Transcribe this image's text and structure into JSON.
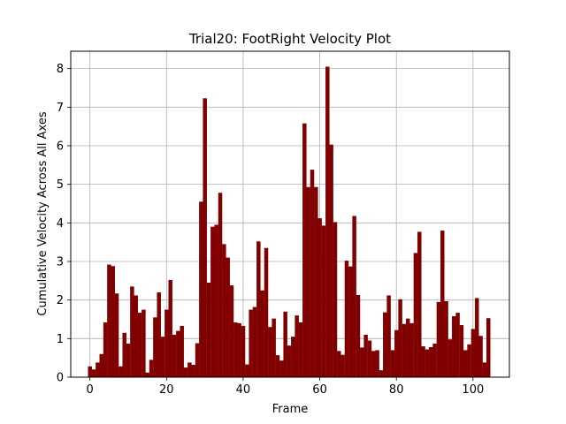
{
  "chart_data": {
    "type": "bar",
    "title": "Trial20: FootRight Velocity Plot",
    "xlabel": "Frame",
    "ylabel": "Cumulative Velocity Across All Axes",
    "xlim": [
      -5,
      109.5
    ],
    "ylim": [
      0,
      8.45
    ],
    "xticks": [
      0,
      20,
      40,
      60,
      80,
      100
    ],
    "yticks": [
      0,
      1,
      2,
      3,
      4,
      5,
      6,
      7,
      8
    ],
    "grid": true,
    "bar_color": "#800000",
    "x": [
      0,
      1,
      2,
      3,
      4,
      5,
      6,
      7,
      8,
      9,
      10,
      11,
      12,
      13,
      14,
      15,
      16,
      17,
      18,
      19,
      20,
      21,
      22,
      23,
      24,
      25,
      26,
      27,
      28,
      29,
      30,
      31,
      32,
      33,
      34,
      35,
      36,
      37,
      38,
      39,
      40,
      41,
      42,
      43,
      44,
      45,
      46,
      47,
      48,
      49,
      50,
      51,
      52,
      53,
      54,
      55,
      56,
      57,
      58,
      59,
      60,
      61,
      62,
      63,
      64,
      65,
      66,
      67,
      68,
      69,
      70,
      71,
      72,
      73,
      74,
      75,
      76,
      77,
      78,
      79,
      80,
      81,
      82,
      83,
      84,
      85,
      86,
      87,
      88,
      89,
      90,
      91,
      92,
      93,
      94,
      95,
      96,
      97,
      98,
      99,
      100,
      101,
      102,
      103,
      104
    ],
    "values": [
      0.28,
      0.2,
      0.38,
      0.6,
      1.42,
      2.92,
      2.88,
      2.17,
      0.28,
      1.15,
      0.87,
      2.35,
      2.12,
      1.67,
      1.75,
      0.12,
      0.45,
      1.55,
      2.2,
      1.05,
      1.75,
      2.52,
      1.1,
      1.2,
      1.33,
      0.25,
      0.38,
      0.32,
      0.88,
      4.55,
      7.23,
      2.45,
      3.9,
      3.95,
      4.78,
      3.45,
      3.1,
      2.38,
      1.42,
      1.4,
      1.33,
      0.33,
      1.75,
      1.82,
      3.52,
      2.25,
      3.35,
      1.3,
      1.52,
      0.57,
      0.43,
      1.7,
      0.82,
      1.05,
      1.6,
      1.42,
      6.58,
      4.93,
      5.38,
      4.93,
      4.12,
      3.93,
      8.05,
      6.03,
      4.02,
      0.68,
      0.58,
      3.02,
      2.87,
      4.18,
      2.13,
      0.77,
      1.1,
      0.95,
      0.68,
      0.7,
      0.18,
      1.68,
      2.12,
      0.7,
      1.22,
      2.02,
      1.38,
      1.52,
      1.4,
      3.22,
      3.77,
      0.8,
      0.72,
      0.78,
      0.87,
      1.95,
      3.8,
      1.97,
      0.98,
      1.58,
      1.67,
      1.35,
      0.7,
      0.85,
      1.25,
      2.05,
      1.07,
      0.38,
      1.53
    ]
  }
}
